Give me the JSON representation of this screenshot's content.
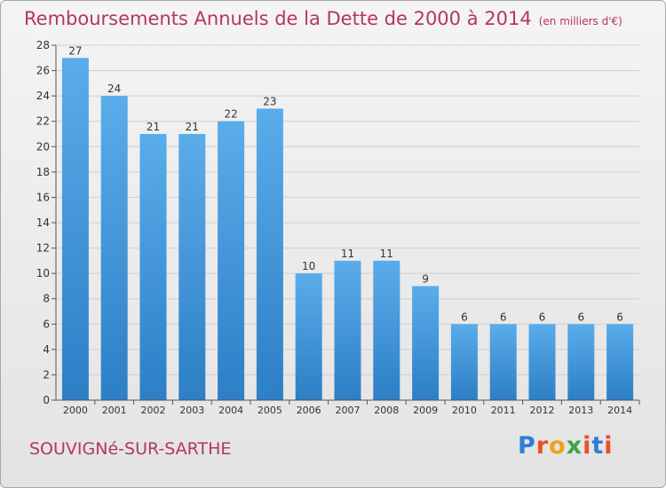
{
  "header": {
    "title": "Remboursements Annuels de la Dette de 2000 à 2014",
    "subtitle": "(en milliers d'€)"
  },
  "footer": {
    "commune": "SOUVIGNé-SUR-SARTHE",
    "logo": "Proxiti"
  },
  "colors": {
    "accent": "#b5365f",
    "bar_top": "#5aacea",
    "bar_bottom": "#2d7fc6",
    "logo_letters": [
      "#2f7ed8",
      "#e94f2a",
      "#f2a01b",
      "#3aa54a",
      "#e94f2a",
      "#2f7ed8",
      "#e94f2a"
    ]
  },
  "chart_data": {
    "type": "bar",
    "title": "Remboursements Annuels de la Dette de 2000 à 2014",
    "subtitle": "(en milliers d'€)",
    "categories": [
      "2000",
      "2001",
      "2002",
      "2003",
      "2004",
      "2005",
      "2006",
      "2007",
      "2008",
      "2009",
      "2010",
      "2011",
      "2012",
      "2013",
      "2014"
    ],
    "values": [
      27,
      24,
      21,
      21,
      22,
      23,
      10,
      11,
      11,
      9,
      6,
      6,
      6,
      6,
      6
    ],
    "xlabel": "",
    "ylabel": "",
    "ylim": [
      0,
      28
    ],
    "yticks": [
      0,
      2,
      4,
      6,
      8,
      10,
      12,
      14,
      16,
      18,
      20,
      22,
      24,
      26,
      28
    ],
    "grid": true,
    "legend": "none"
  }
}
